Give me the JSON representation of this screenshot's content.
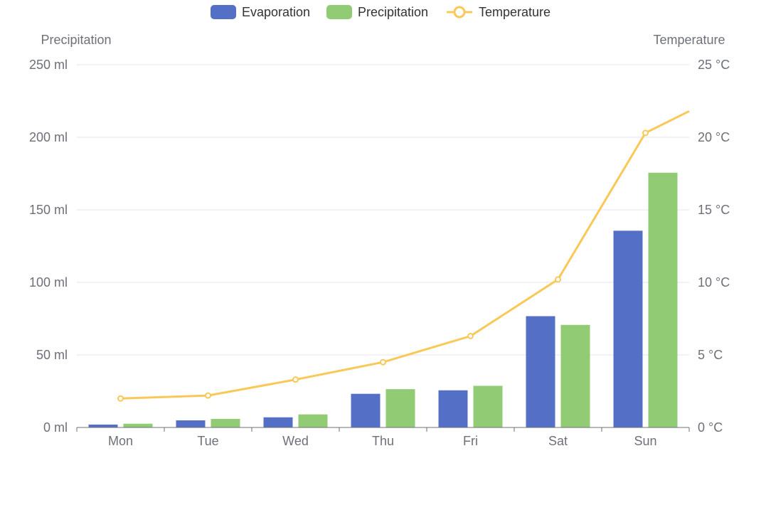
{
  "chart_data": {
    "type": "bar",
    "categories": [
      "Mon",
      "Tue",
      "Wed",
      "Thu",
      "Fri",
      "Sat",
      "Sun"
    ],
    "series": [
      {
        "name": "Evaporation",
        "type": "bar",
        "axis": "left",
        "values": [
          2.0,
          4.9,
          7.0,
          23.2,
          25.6,
          76.7,
          135.6
        ]
      },
      {
        "name": "Precipitation",
        "type": "bar",
        "axis": "left",
        "values": [
          2.6,
          5.9,
          9.0,
          26.4,
          28.7,
          70.7,
          175.6
        ]
      },
      {
        "name": "Temperature",
        "type": "line",
        "axis": "right",
        "values": [
          2.0,
          2.2,
          3.3,
          4.5,
          6.3,
          10.2,
          20.3
        ],
        "continues_past_sun": 21.8
      }
    ],
    "y_left": {
      "label": "Precipitation",
      "unit": "ml",
      "ylim": [
        0,
        250
      ],
      "ticks": [
        "0 ml",
        "50 ml",
        "100 ml",
        "150 ml",
        "200 ml",
        "250 ml"
      ]
    },
    "y_right": {
      "label": "Temperature",
      "unit": "°C",
      "ylim": [
        0,
        25
      ],
      "ticks": [
        "0 °C",
        "5 °C",
        "10 °C",
        "15 °C",
        "20 °C",
        "25 °C"
      ]
    },
    "legend": {
      "placement": "top-center",
      "items": [
        "Evaporation",
        "Precipitation",
        "Temperature"
      ]
    },
    "grid": true,
    "colors": {
      "Evaporation": "#5470c6",
      "Precipitation": "#91cc75",
      "Temperature": "#fac858",
      "grid": "#e0e6f1",
      "axis": "#6e7079",
      "label": "#6e7079"
    }
  }
}
